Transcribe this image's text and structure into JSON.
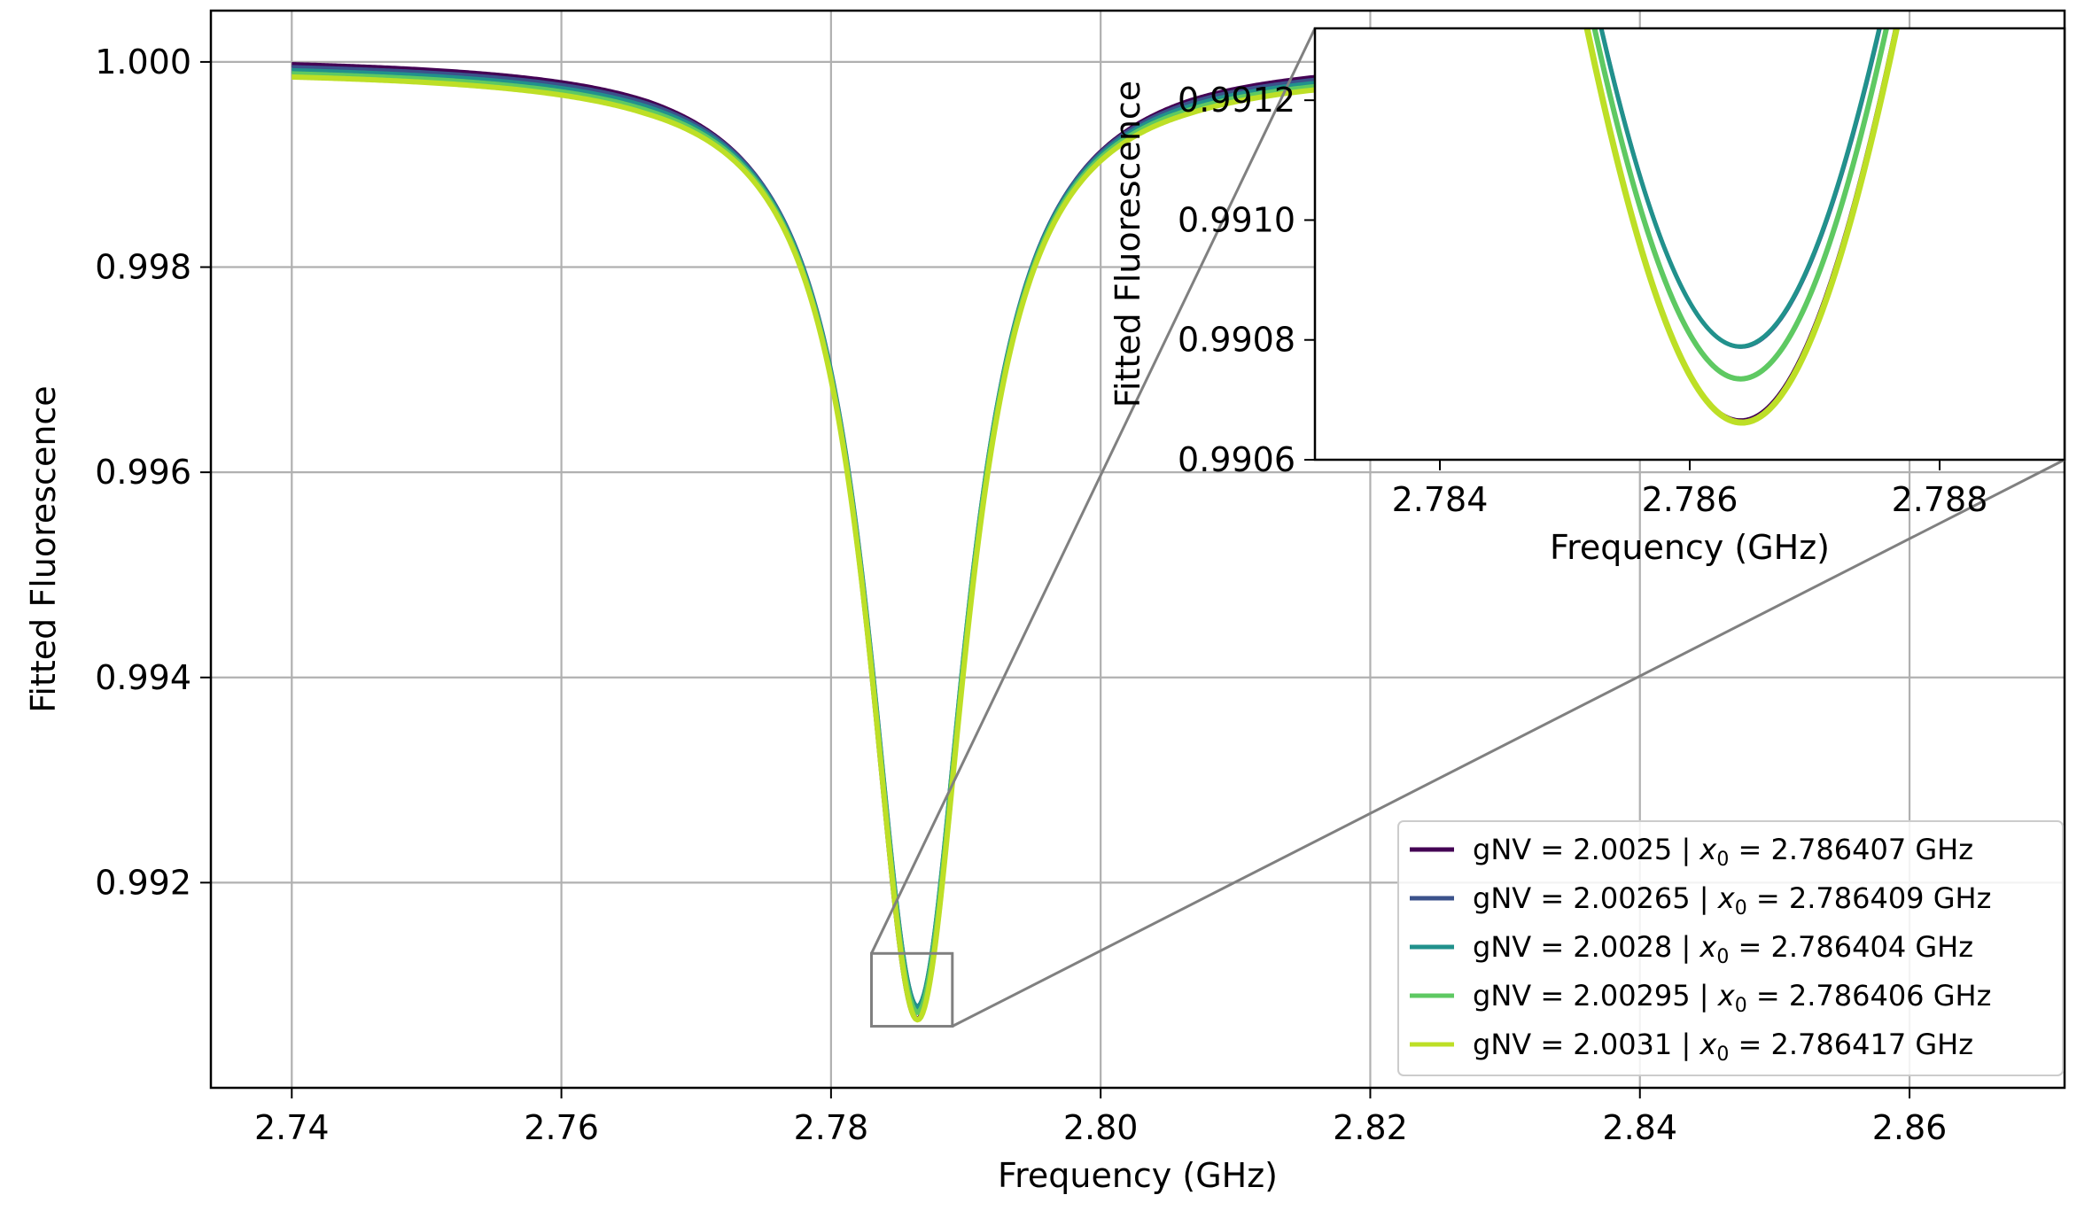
{
  "chart_data": [
    {
      "type": "line",
      "title": "",
      "xlabel": "Frequency (GHz)",
      "ylabel": "Fitted Fluorescence",
      "xlim": [
        2.734,
        2.8715
      ],
      "ylim": [
        0.99,
        1.0005
      ],
      "grid": true,
      "x_ticks": [
        2.74,
        2.76,
        2.78,
        2.8,
        2.82,
        2.84,
        2.86
      ],
      "x_tick_labels": [
        "2.74",
        "2.76",
        "2.78",
        "2.80",
        "2.82",
        "2.84",
        "2.86"
      ],
      "y_ticks": [
        0.992,
        0.994,
        0.996,
        0.998,
        1.0
      ],
      "y_tick_labels": [
        "0.992",
        "0.994",
        "0.996",
        "0.998",
        "1.000"
      ],
      "x_range": [
        2.74,
        2.86
      ],
      "model": "lorentzian",
      "legend_position": "lower-right",
      "series": [
        {
          "name": "gNV = 2.0025",
          "label_prefix": "gNV = 2.0025  |  ",
          "x0_label": "= 2.786407 GHz",
          "color": "#440154",
          "x0": 2.786407,
          "min": 0.990667,
          "half_width": 0.0045
        },
        {
          "name": "gNV = 2.00265",
          "label_prefix": "gNV = 2.00265  |  ",
          "x0_label": "= 2.786409 GHz",
          "color": "#3b528b",
          "x0": 2.786409,
          "min": 0.990788,
          "half_width": 0.0045
        },
        {
          "name": "gNV = 2.0028",
          "label_prefix": "gNV = 2.0028  |  ",
          "x0_label": "= 2.786404 GHz",
          "color": "#21918c",
          "x0": 2.786404,
          "min": 0.990789,
          "half_width": 0.0045
        },
        {
          "name": "gNV = 2.00295",
          "label_prefix": "gNV = 2.00295  |  ",
          "x0_label": "= 2.786406 GHz",
          "color": "#5ec962",
          "x0": 2.786406,
          "min": 0.990735,
          "half_width": 0.0045
        },
        {
          "name": "gNV = 2.0031",
          "label_prefix": "gNV = 2.0031  |  ",
          "x0_label": "= 2.786417 GHz",
          "color": "#bddf26",
          "x0": 2.786417,
          "min": 0.990662,
          "half_width": 0.0045
        }
      ]
    },
    {
      "type": "line",
      "inset": true,
      "title": "",
      "xlabel": "Frequency (GHz)",
      "ylabel": "Fitted Fluorescence",
      "xlim": [
        2.783,
        2.789
      ],
      "ylim": [
        0.9906,
        0.99132
      ],
      "x_ticks": [
        2.784,
        2.786,
        2.788
      ],
      "x_tick_labels": [
        "2.784",
        "2.786",
        "2.788"
      ],
      "y_ticks": [
        0.9906,
        0.9908,
        0.991,
        0.9912
      ],
      "y_tick_labels": [
        "0.9906",
        "0.9908",
        "0.9910",
        "0.9912"
      ],
      "zoom_region": {
        "x": [
          2.783,
          2.789
        ],
        "y": [
          0.9906,
          0.99131
        ]
      }
    }
  ]
}
